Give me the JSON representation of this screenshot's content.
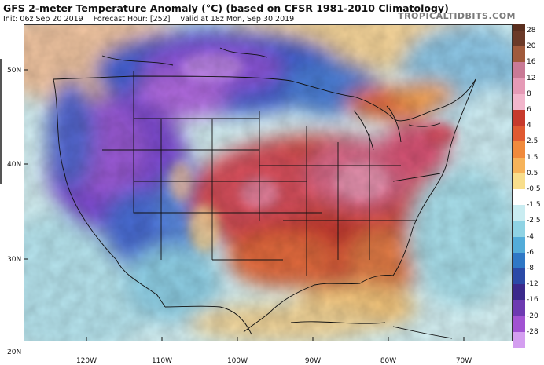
{
  "header": {
    "title": "GFS 2-meter Temperature Anomaly (°C) (based on CFSR 1981-2010 Climatology)",
    "init": "Init: 06z Sep 20 2019",
    "forecast_hour": "Forecast Hour: [252]",
    "valid": "valid at 18z Mon, Sep 30 2019"
  },
  "brand": "TROPICALTIDBITS.COM",
  "latitude_labels": [
    "50N",
    "40N",
    "30N",
    "20N"
  ],
  "longitude_labels": [
    "120W",
    "110W",
    "100W",
    "90W",
    "80W",
    "70W"
  ],
  "legend": {
    "labels": [
      "28",
      "20",
      "16",
      "12",
      "8",
      "6",
      "4",
      "2.5",
      "1.5",
      "0.5",
      "-0.5",
      "-1.5",
      "-2.5",
      "-4",
      "-6",
      "-8",
      "-12",
      "-16",
      "-20",
      "-28"
    ],
    "colors": [
      "#6b3a28",
      "#a05a3c",
      "#c97a96",
      "#e59ab6",
      "#f2b6cc",
      "#c73a2c",
      "#e05a32",
      "#f08a3c",
      "#f6b35a",
      "#f8de8c",
      "#ffffff",
      "#c9ecf1",
      "#8fd3e4",
      "#53acd9",
      "#2f78c6",
      "#2b4aa7",
      "#3b2a8c",
      "#6d3ab1",
      "#a153d2",
      "#d49ef0"
    ]
  }
}
